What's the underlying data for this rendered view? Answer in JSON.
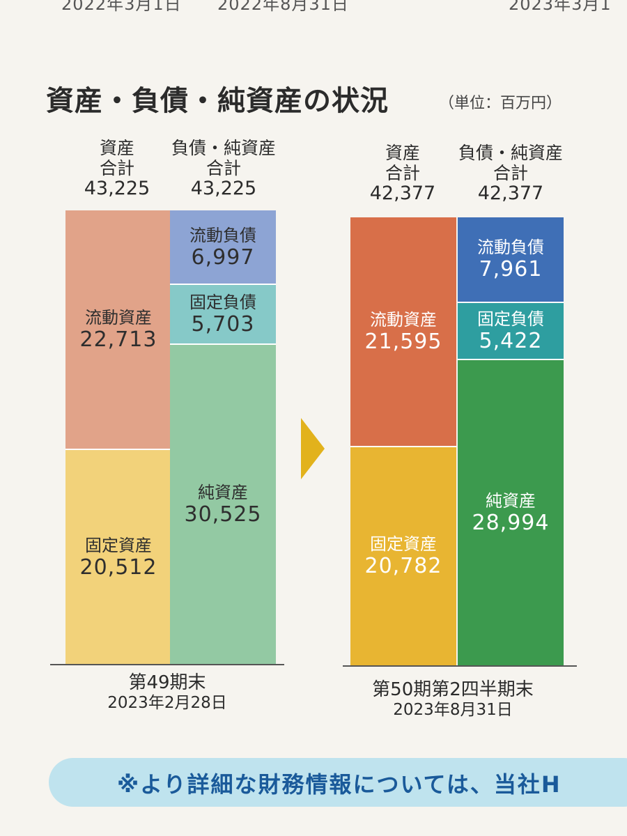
{
  "page": {
    "top_dates": [
      "2022年3月1日",
      "2022年8月31日",
      "2023年3月1"
    ],
    "title": "資産・負債・純資産の状況",
    "unit": "（単位：百万円）",
    "banner_text": "※より詳細な財務情報については、当社H"
  },
  "chart_data": {
    "type": "bar",
    "stacked": true,
    "title": "資産・負債・純資産の状況",
    "unit": "（単位：百万円）",
    "categories": [
      "第49期末",
      "第50期第2四半期末"
    ],
    "periods": [
      {
        "name": "第49期末",
        "date": "2023年2月28日",
        "asset_total_label": "資産合計",
        "asset_total": "43,225",
        "liab_total_label": "負債・純資産合計",
        "liab_total": "43,225",
        "assets": [
          {
            "name": "流動資産",
            "value": 22713,
            "display": "22,713",
            "color": "#e1a389"
          },
          {
            "name": "固定資産",
            "value": 20512,
            "display": "20,512",
            "color": "#f2d27a"
          }
        ],
        "liabilities": [
          {
            "name": "流動負債",
            "value": 6997,
            "display": "6,997",
            "color": "#8da4d4"
          },
          {
            "name": "固定負債",
            "value": 5703,
            "display": "5,703",
            "color": "#86c9c8"
          },
          {
            "name": "純資産",
            "value": 30525,
            "display": "30,525",
            "color": "#93c9a3"
          }
        ]
      },
      {
        "name": "第50期第2四半期末",
        "date": "2023年8月31日",
        "asset_total_label": "資産合計",
        "asset_total": "42,377",
        "liab_total_label": "負債・純資産合計",
        "liab_total": "42,377",
        "assets": [
          {
            "name": "流動資産",
            "value": 21595,
            "display": "21,595",
            "color": "#d86f49"
          },
          {
            "name": "固定資産",
            "value": 20782,
            "display": "20,782",
            "color": "#e8b532"
          }
        ],
        "liabilities": [
          {
            "name": "流動負債",
            "value": 7961,
            "display": "7,961",
            "color": "#3f6fb6"
          },
          {
            "name": "固定負債",
            "value": 5422,
            "display": "5,422",
            "color": "#2e9ea0"
          },
          {
            "name": "純資産",
            "value": 28994,
            "display": "28,994",
            "color": "#3c9a4e"
          }
        ]
      }
    ]
  }
}
